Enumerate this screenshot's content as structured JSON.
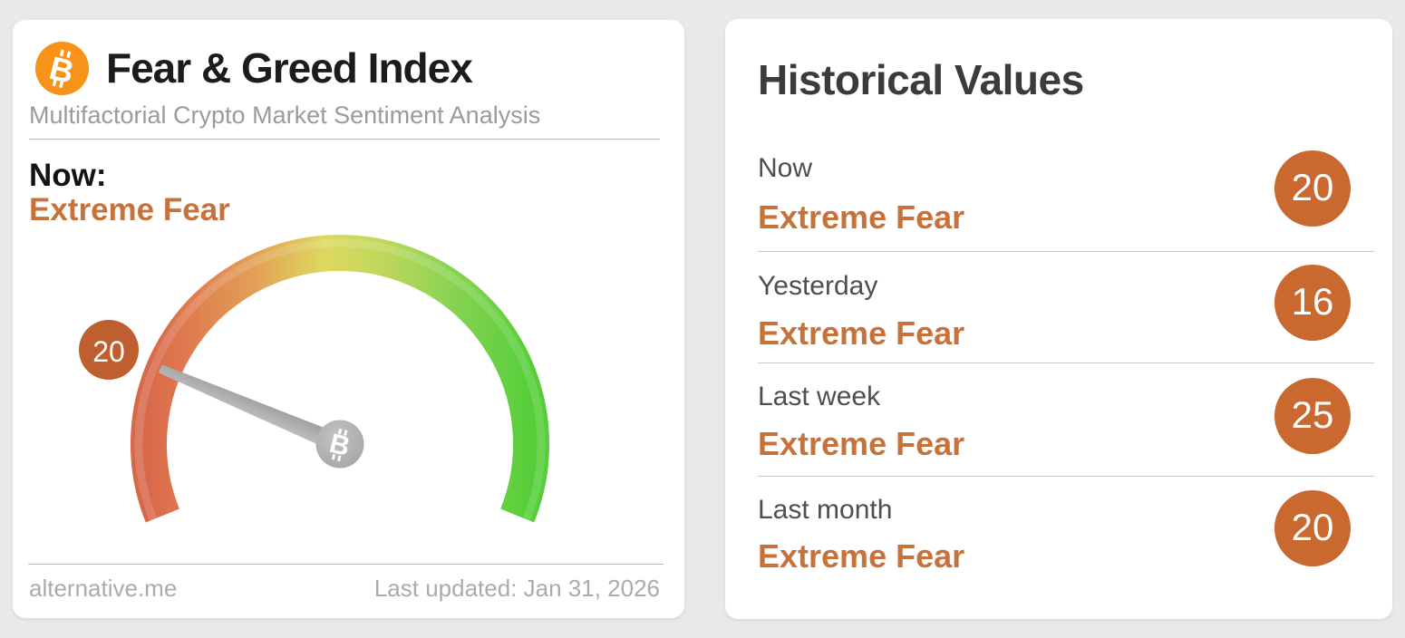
{
  "fear_greed_card": {
    "title": "Fear & Greed Index",
    "subtitle": "Multifactorial Crypto Market Sentiment Analysis",
    "now_label": "Now:",
    "now_classification": "Extreme Fear",
    "gauge": {
      "value": 20,
      "min": 0,
      "max": 100,
      "start_angle_deg": 202,
      "sweep_deg": 224
    },
    "footer": {
      "source": "alternative.me",
      "last_updated": "Last updated: Jan 31, 2026"
    }
  },
  "historical_card": {
    "title": "Historical Values",
    "rows": [
      {
        "label": "Now",
        "classification": "Extreme Fear",
        "value": 20
      },
      {
        "label": "Yesterday",
        "classification": "Extreme Fear",
        "value": 16
      },
      {
        "label": "Last week",
        "classification": "Extreme Fear",
        "value": 25
      },
      {
        "label": "Last month",
        "classification": "Extreme Fear",
        "value": 20
      }
    ]
  },
  "icons": {
    "logo": "bitcoin-icon",
    "pivot": "bitcoin-icon"
  },
  "colors": {
    "page_background": "#e9e9e9",
    "card_background": "#ffffff",
    "classification_orange": "#c7713b",
    "history_badge_orange": "#c9682f",
    "gauge_badge_orange": "#bf5f30",
    "bitcoin_orange": "#f7931a",
    "needle_gray": "#a9a9a9",
    "gauge_gradient": [
      "#d8684a",
      "#df7a50",
      "#e2a156",
      "#ded95e",
      "#bcd75c",
      "#86d351",
      "#55ce39"
    ]
  }
}
